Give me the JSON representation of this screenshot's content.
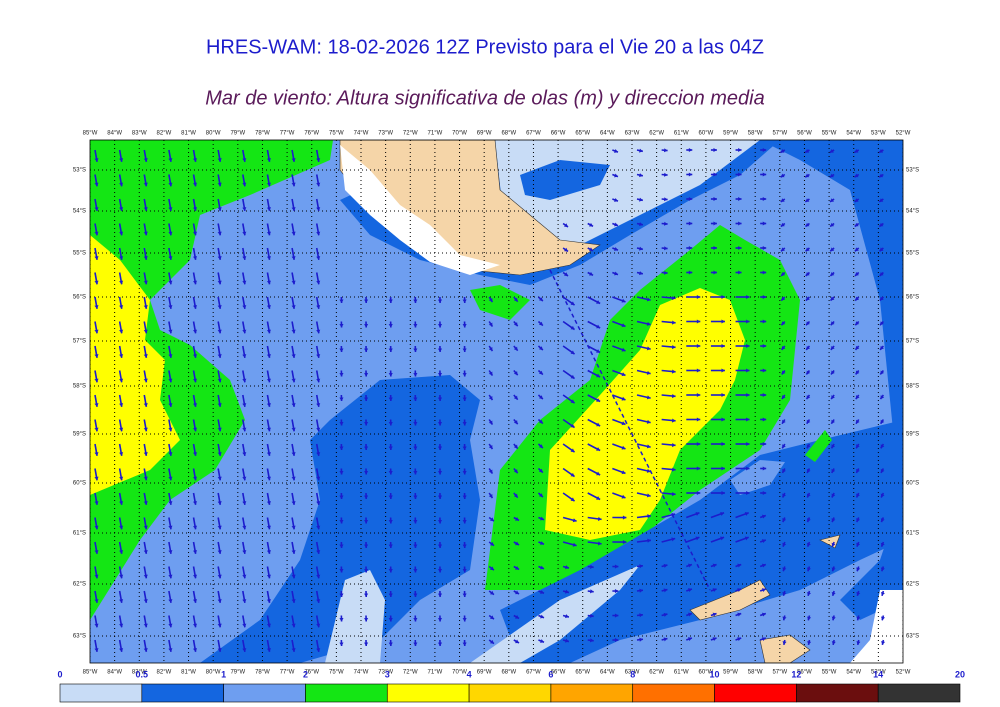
{
  "header": {
    "title": "HRES-WAM: 18-02-2026 12Z Previsto para el Vie 20 a las 04Z",
    "subtitle": "Mar de viento: Altura significativa de olas (m) y direccion media"
  },
  "map": {
    "lon_labels": [
      "85°W",
      "84°W",
      "83°W",
      "82°W",
      "81°W",
      "80°W",
      "79°W",
      "78°W",
      "77°W",
      "76°W",
      "75°W",
      "74°W",
      "73°W",
      "72°W",
      "71°W",
      "70°W",
      "69°W",
      "68°W",
      "67°W",
      "66°W",
      "65°W",
      "64°W",
      "63°W",
      "62°W",
      "61°W",
      "60°W",
      "59°W",
      "58°W",
      "57°W",
      "56°W",
      "55°W",
      "54°W",
      "53°W",
      "52°W"
    ],
    "lat_labels": [
      "53°S",
      "54°S",
      "55°S",
      "56°S",
      "57°S",
      "58°S",
      "59°S",
      "60°S",
      "61°S",
      "62°S",
      "63°S"
    ]
  },
  "legend": {
    "ticks": [
      0,
      0.5,
      1,
      2,
      3,
      4,
      6,
      8,
      10,
      12,
      14,
      20
    ],
    "colors": [
      "#c8dcf6",
      "#1466e0",
      "#6e9ef0",
      "#14e614",
      "#ffff00",
      "#ffd700",
      "#ffa500",
      "#ff7000",
      "#ff0000",
      "#6b0e0e",
      "#333333"
    ]
  }
}
